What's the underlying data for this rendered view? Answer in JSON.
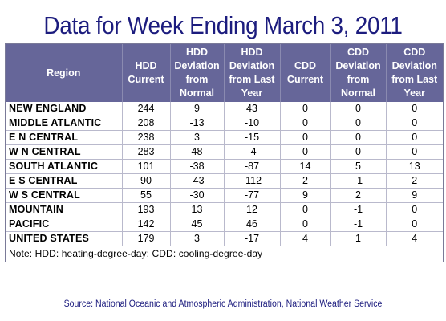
{
  "title": "Data for Week Ending March 3, 2011",
  "columns": [
    "Region",
    "HDD Current",
    "HDD Deviation from Normal",
    "HDD Deviation from Last Year",
    "CDD Current",
    "CDD Deviation from Normal",
    "CDD Deviation from Last Year"
  ],
  "rows": [
    [
      "NEW ENGLAND",
      "244",
      "9",
      "43",
      "0",
      "0",
      "0"
    ],
    [
      "MIDDLE ATLANTIC",
      "208",
      "-13",
      "-10",
      "0",
      "0",
      "0"
    ],
    [
      "E N CENTRAL",
      "238",
      "3",
      "-15",
      "0",
      "0",
      "0"
    ],
    [
      "W N CENTRAL",
      "283",
      "48",
      "-4",
      "0",
      "0",
      "0"
    ],
    [
      "SOUTH ATLANTIC",
      "101",
      "-38",
      "-87",
      "14",
      "5",
      "13"
    ],
    [
      "E S CENTRAL",
      "90",
      "-43",
      "-112",
      "2",
      "-1",
      "2"
    ],
    [
      "W S CENTRAL",
      "55",
      "-30",
      "-77",
      "9",
      "2",
      "9"
    ],
    [
      "MOUNTAIN",
      "193",
      "13",
      "12",
      "0",
      "-1",
      "0"
    ],
    [
      "PACIFIC",
      "142",
      "45",
      "46",
      "0",
      "-1",
      "0"
    ],
    [
      "UNITED STATES",
      "179",
      "3",
      "-17",
      "4",
      "1",
      "4"
    ]
  ],
  "note": "Note: HDD: heating-degree-day; CDD: cooling-degree-day",
  "source": "Source:  National Oceanic and Atmospheric Administration, National Weather Service",
  "colors": {
    "title": "#1c1c7e",
    "header_background": "#666699",
    "header_text": "#ffffff",
    "source": "#1c1c7e"
  }
}
